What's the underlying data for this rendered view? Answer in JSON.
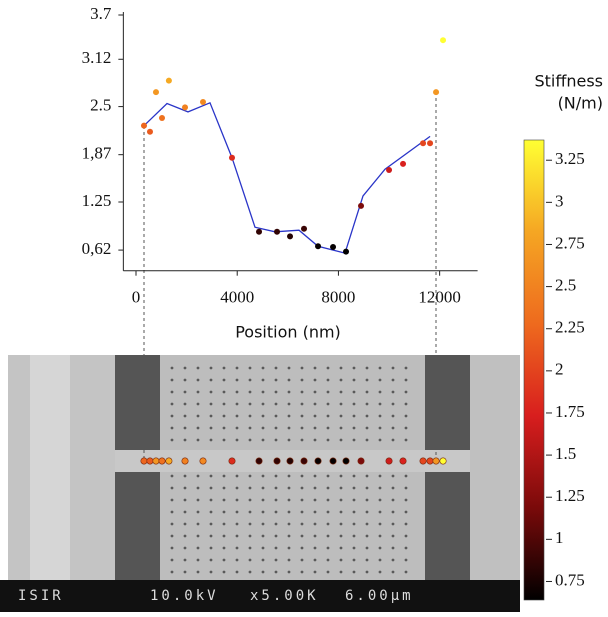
{
  "chart_data": {
    "type": "scatter",
    "x_label": "Position (nm)",
    "xlim": [
      -500,
      13500
    ],
    "xticks": [
      0,
      4000,
      8000,
      12000
    ],
    "ylim": [
      0.35,
      3.7
    ],
    "yticks": [
      3.7,
      3.12,
      2.5,
      {
        "value": 1.87,
        "label": "1,87"
      },
      1.25,
      {
        "value": 0.62,
        "label": "0,62"
      }
    ],
    "x": [
      316,
      553,
      790,
      1028,
      1300,
      1937,
      2648,
      3794,
      4862,
      5573,
      6087,
      6640,
      7194,
      7787,
      8300,
      8893,
      10000,
      10553,
      11344,
      11621,
      11858,
      12134
    ],
    "values": [
      2.25,
      2.17,
      2.69,
      2.35,
      2.84,
      2.49,
      2.56,
      1.83,
      0.86,
      0.86,
      0.8,
      0.9,
      0.67,
      0.66,
      0.6,
      1.2,
      1.67,
      1.75,
      2.02,
      2.02,
      2.69,
      3.37
    ],
    "fit": {
      "color": "#2a35c8",
      "x": [
        316,
        1225,
        2055,
        2925,
        3794,
        4704,
        5494,
        6443,
        7194,
        8261,
        8972,
        9842,
        11621
      ],
      "y": [
        2.25,
        2.54,
        2.43,
        2.55,
        1.83,
        0.92,
        0.86,
        0.88,
        0.67,
        0.58,
        1.33,
        1.68,
        2.11
      ]
    },
    "colorbar": {
      "title": [
        "Stiffness",
        "(N/m)"
      ],
      "lim": [
        0.64,
        3.37
      ],
      "ticks": [
        3.25,
        3,
        2.75,
        2.5,
        2.25,
        2,
        1.75,
        1.5,
        1.25,
        1,
        0.75
      ],
      "colormap": [
        "#000000",
        "#7a0a0a",
        "#d81e1e",
        "#ee6a1e",
        "#f5a623",
        "#ffff33"
      ]
    }
  },
  "sem_image": {
    "label": "ISIR",
    "voltage": "10.0kV",
    "magnification": "x5.00K",
    "scale": "6.00µm"
  }
}
